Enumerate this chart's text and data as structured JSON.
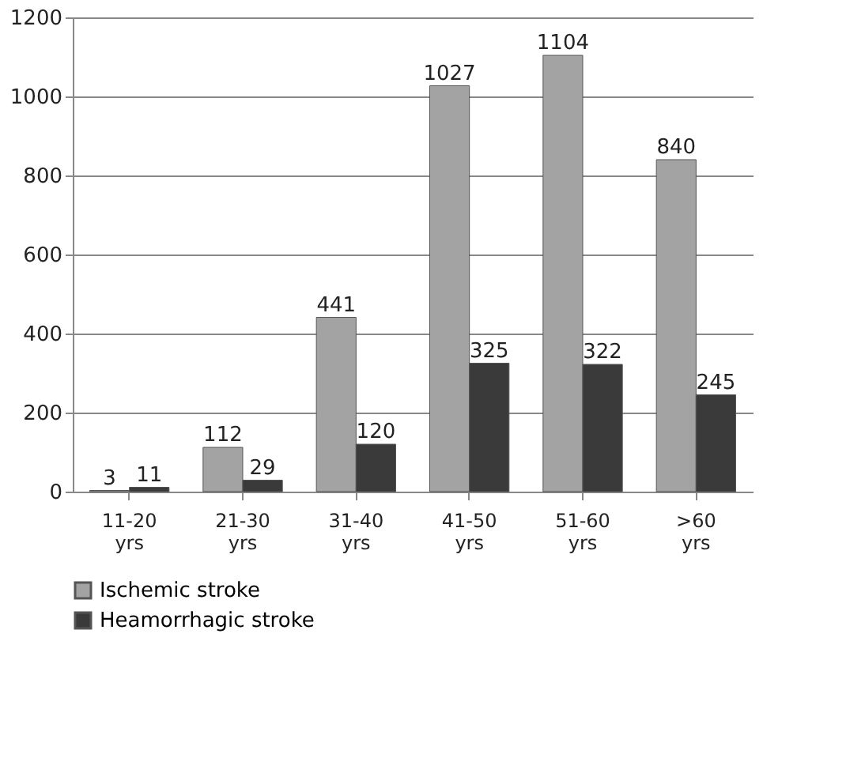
{
  "chart_data": {
    "type": "bar",
    "categories": [
      "11-20 yrs",
      "21-30 yrs",
      "31-40 yrs",
      "41-50 yrs",
      "51-60 yrs",
      ">60 yrs"
    ],
    "series": [
      {
        "name": "Ischemic stroke",
        "color": "#a3a3a3",
        "values": [
          3,
          112,
          441,
          1027,
          1104,
          840
        ]
      },
      {
        "name": "Heamorrhagic stroke",
        "color": "#3a3a3a",
        "values": [
          11,
          29,
          120,
          325,
          322,
          245
        ]
      }
    ],
    "ylim": [
      0,
      1200
    ],
    "yticks": [
      0,
      200,
      400,
      600,
      800,
      1000,
      1200
    ],
    "grid": "y",
    "legend": "bottom",
    "data_labels": true
  }
}
